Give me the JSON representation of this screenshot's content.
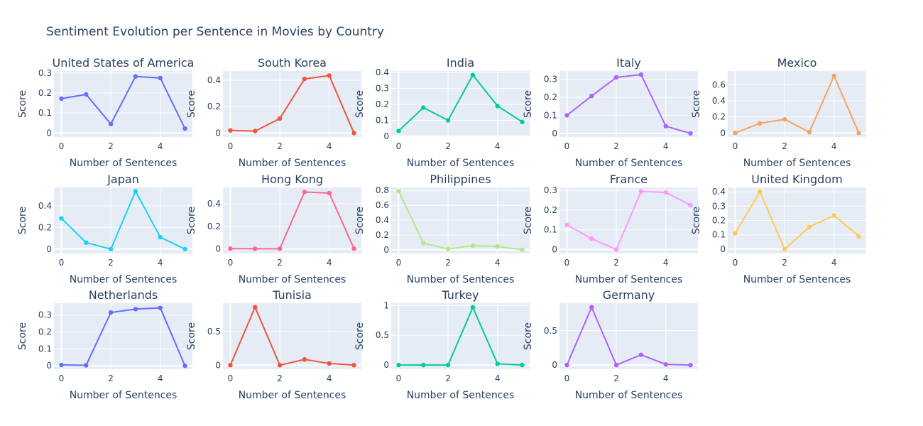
{
  "chart_data": {
    "type": "line",
    "title": "Sentiment Evolution per Sentence in Movies by Country",
    "xlabel": "Number of Sentences",
    "ylabel": "Score",
    "grid": true,
    "legend": "none",
    "x": [
      0,
      1,
      2,
      3,
      4,
      5
    ],
    "panels": [
      {
        "title": "United States of America",
        "color": "#636EFA",
        "values": [
          0.172,
          0.193,
          0.045,
          0.283,
          0.275,
          0.022
        ],
        "ylim": [
          -0.02,
          0.31
        ],
        "yticks": [
          0,
          0.1,
          0.2,
          0.3
        ],
        "yticklabels": [
          "0",
          "0.1",
          "0.2",
          "0.3"
        ],
        "xticklabels": [
          "0",
          "2",
          "4"
        ]
      },
      {
        "title": "South Korea",
        "color": "#EF553B",
        "values": [
          0.02,
          0.015,
          0.11,
          0.41,
          0.435,
          0.0
        ],
        "ylim": [
          -0.03,
          0.47
        ],
        "yticks": [
          0,
          0.2,
          0.4
        ],
        "yticklabels": [
          "0",
          "0.2",
          "0.4"
        ],
        "xticklabels": [
          "0",
          "2",
          "4"
        ]
      },
      {
        "title": "India",
        "color": "#00CC96",
        "values": [
          0.033,
          0.18,
          0.1,
          0.385,
          0.19,
          0.09
        ],
        "ylim": [
          -0.005,
          0.41
        ],
        "yticks": [
          0,
          0.1,
          0.2,
          0.3,
          0.4
        ],
        "yticklabels": [
          "0",
          "0.1",
          "0.2",
          "0.3",
          "0.4"
        ],
        "xticklabels": [
          "0",
          "2",
          "4"
        ]
      },
      {
        "title": "Italy",
        "color": "#AB63FA",
        "values": [
          0.1,
          0.207,
          0.31,
          0.325,
          0.04,
          0.0
        ],
        "ylim": [
          -0.02,
          0.345
        ],
        "yticks": [
          0,
          0.1,
          0.2,
          0.3
        ],
        "yticklabels": [
          "0",
          "0.1",
          "0.2",
          "0.3"
        ],
        "xticklabels": [
          "0",
          "2",
          "4"
        ]
      },
      {
        "title": "Mexico",
        "color": "#FFA15A",
        "values": [
          0.0,
          0.12,
          0.17,
          0.01,
          0.71,
          0.0
        ],
        "ylim": [
          -0.05,
          0.77
        ],
        "yticks": [
          0,
          0.2,
          0.4,
          0.6
        ],
        "yticklabels": [
          "0",
          "0.2",
          "0.4",
          "0.6"
        ],
        "xticklabels": [
          "0",
          "2",
          "4"
        ]
      },
      {
        "title": "Japan",
        "color": "#19D3F3",
        "values": [
          0.285,
          0.06,
          0.0,
          0.535,
          0.11,
          0.0
        ],
        "ylim": [
          -0.04,
          0.57
        ],
        "yticks": [
          0,
          0.2,
          0.4
        ],
        "yticklabels": [
          "0",
          "0.2",
          "0.4"
        ],
        "xticklabels": [
          "0",
          "2",
          "4"
        ]
      },
      {
        "title": "Hong Kong",
        "color": "#FF6692",
        "values": [
          0.003,
          0.002,
          0.002,
          0.505,
          0.495,
          0.003
        ],
        "ylim": [
          -0.04,
          0.545
        ],
        "yticks": [
          0,
          0.2,
          0.4
        ],
        "yticklabels": [
          "0",
          "0.2",
          "0.4"
        ],
        "xticklabels": [
          "0",
          "2",
          "4"
        ]
      },
      {
        "title": "Philippines",
        "color": "#B6E880",
        "values": [
          0.79,
          0.09,
          0.01,
          0.055,
          0.045,
          0.0
        ],
        "ylim": [
          -0.05,
          0.84
        ],
        "yticks": [
          0,
          0.2,
          0.4,
          0.6,
          0.8
        ],
        "yticklabels": [
          "0",
          "0.2",
          "0.4",
          "0.6",
          "0.8"
        ],
        "xticklabels": [
          "0",
          "2",
          "4"
        ]
      },
      {
        "title": "France",
        "color": "#FF97FF",
        "values": [
          0.125,
          0.055,
          0.0,
          0.295,
          0.29,
          0.225
        ],
        "ylim": [
          -0.02,
          0.315
        ],
        "yticks": [
          0,
          0.1,
          0.2,
          0.3
        ],
        "yticklabels": [
          "0",
          "0.1",
          "0.2",
          "0.3"
        ],
        "xticklabels": [
          "0",
          "2",
          "4"
        ]
      },
      {
        "title": "United Kingdom",
        "color": "#FECB52",
        "values": [
          0.11,
          0.4,
          0.0,
          0.155,
          0.235,
          0.09
        ],
        "ylim": [
          -0.03,
          0.43
        ],
        "yticks": [
          0,
          0.1,
          0.2,
          0.3,
          0.4
        ],
        "yticklabels": [
          "0",
          "0.1",
          "0.2",
          "0.3",
          "0.4"
        ],
        "xticklabels": [
          "0",
          "2",
          "4"
        ]
      },
      {
        "title": "Netherlands",
        "color": "#636EFA",
        "values": [
          0.005,
          0.003,
          0.315,
          0.335,
          0.342,
          0.0
        ],
        "ylim": [
          -0.02,
          0.37
        ],
        "yticks": [
          0,
          0.1,
          0.2,
          0.3
        ],
        "yticklabels": [
          "0",
          "0.1",
          "0.2",
          "0.3"
        ],
        "xticklabels": [
          "0",
          "2",
          "4"
        ]
      },
      {
        "title": "Tunisia",
        "color": "#EF553B",
        "values": [
          0.0,
          0.86,
          0.0,
          0.085,
          0.025,
          0.0
        ],
        "ylim": [
          -0.06,
          0.92
        ],
        "yticks": [
          0,
          0.5
        ],
        "yticklabels": [
          "0",
          "0.5"
        ],
        "xticklabels": [
          "0",
          "2",
          "4"
        ]
      },
      {
        "title": "Turkey",
        "color": "#00CC96",
        "values": [
          0.0,
          0.0,
          0.0,
          0.97,
          0.02,
          0.0
        ],
        "ylim": [
          -0.07,
          1.04
        ],
        "yticks": [
          0,
          0.5,
          1
        ],
        "yticklabels": [
          "0",
          "0.5",
          "1"
        ],
        "xticklabels": [
          "0",
          "2",
          "4"
        ]
      },
      {
        "title": "Germany",
        "color": "#AB63FA",
        "values": [
          0.0,
          0.84,
          0.0,
          0.15,
          0.01,
          0.0
        ],
        "ylim": [
          -0.06,
          0.9
        ],
        "yticks": [
          0,
          0.5
        ],
        "yticklabels": [
          "0",
          "0.5"
        ],
        "xticklabels": [
          "0",
          "2",
          "4"
        ]
      }
    ]
  }
}
